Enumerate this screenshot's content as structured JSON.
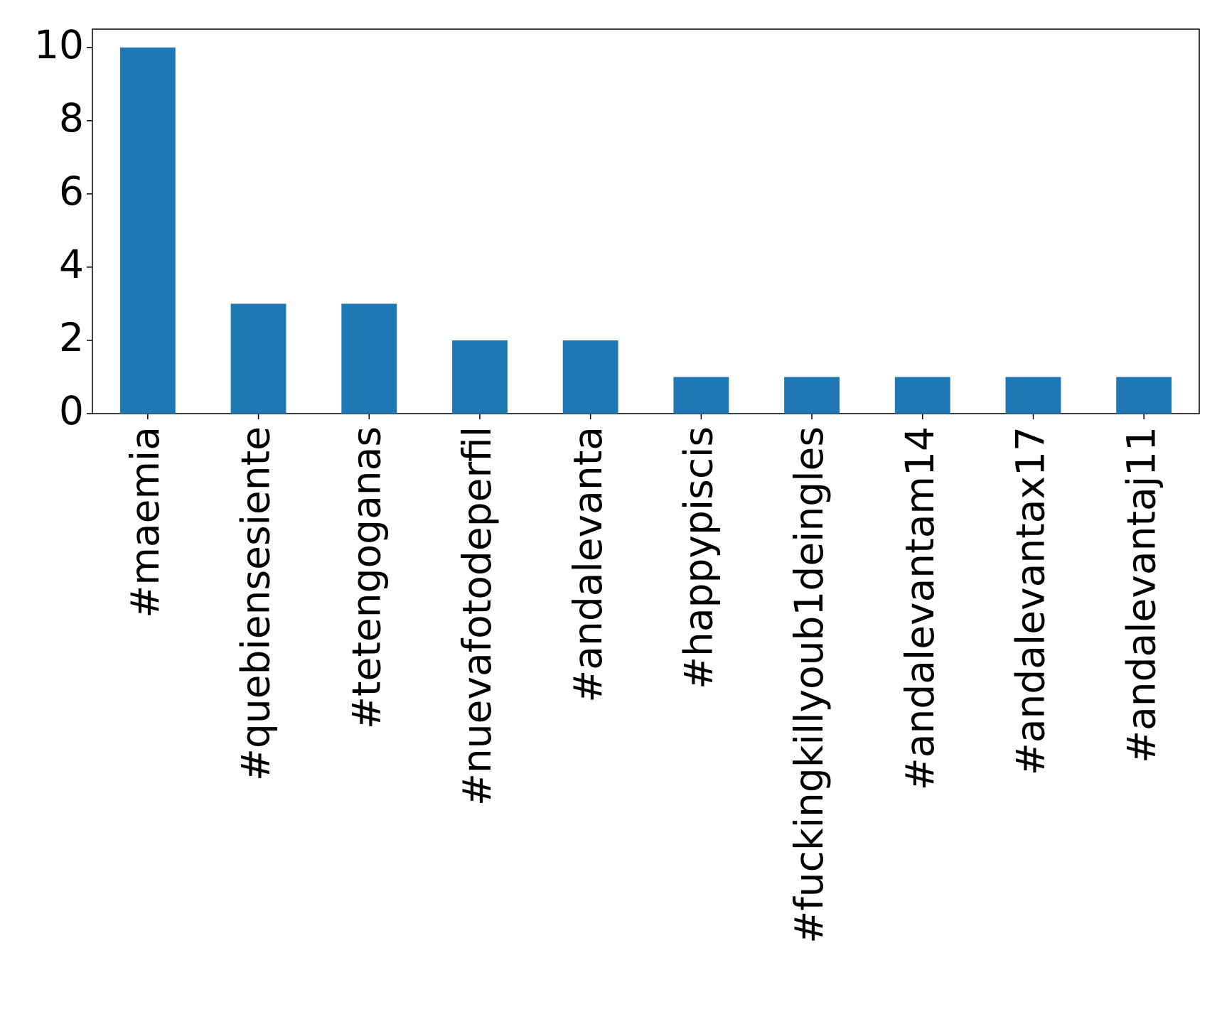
{
  "chart_data": {
    "type": "bar",
    "categories": [
      "#maemia",
      "#quebiensesiente",
      "#tetengoganas",
      "#nuevafotodeperfil",
      "#andalevanta",
      "#happypiscis",
      "#fuckingkillyoub1deingles",
      "#andalevantam14",
      "#andalevantax17",
      "#andalevantaj11"
    ],
    "values": [
      10,
      3,
      3,
      2,
      2,
      1,
      1,
      1,
      1,
      1
    ],
    "color": "#1f77b4",
    "ylim": [
      0,
      10.5
    ],
    "yticks": [
      0,
      2,
      4,
      6,
      8,
      10
    ],
    "grid": false
  }
}
